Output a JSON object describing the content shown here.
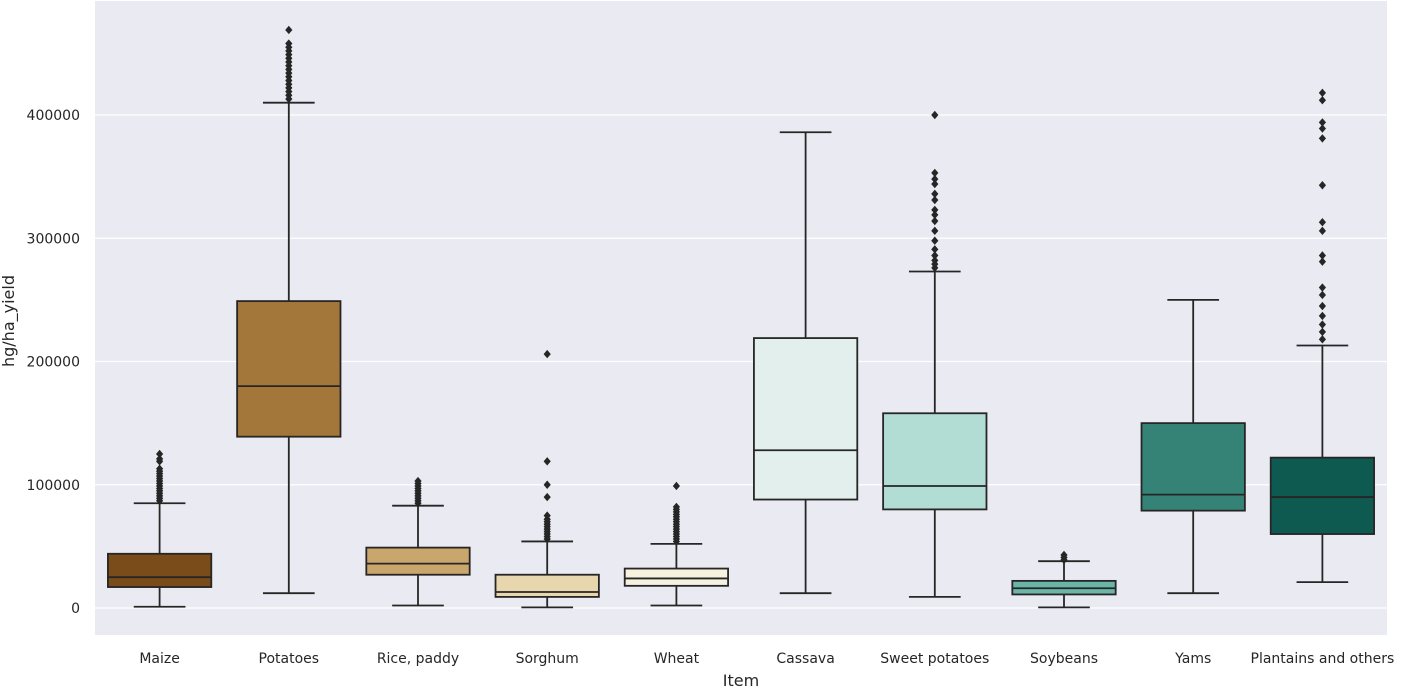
{
  "chart_data": {
    "type": "box",
    "title": "",
    "xlabel": "Item",
    "ylabel": "hg/ha_yield",
    "ylim": [
      -22000,
      490000
    ],
    "yticks": [
      0,
      100000,
      200000,
      300000,
      400000
    ],
    "ytick_labels": [
      "0",
      "100000",
      "200000",
      "300000",
      "400000"
    ],
    "grid": true,
    "categories": [
      "Maize",
      "Potatoes",
      "Rice, paddy",
      "Sorghum",
      "Wheat",
      "Cassava",
      "Sweet potatoes",
      "Soybeans",
      "Yams",
      "Plantains and others"
    ],
    "boxes": [
      {
        "category": "Maize",
        "color": "#7a4c1a",
        "whisker_low": 1000,
        "q1": 17000,
        "median": 25000,
        "q3": 44000,
        "whisker_high": 85000,
        "outliers": [
          87000,
          89000,
          91000,
          93000,
          95000,
          97000,
          99000,
          101000,
          103000,
          105000,
          107000,
          109000,
          111000,
          113000,
          119000,
          121000,
          125000
        ]
      },
      {
        "category": "Potatoes",
        "color": "#a3763a",
        "whisker_low": 12000,
        "q1": 139000,
        "median": 180000,
        "q3": 249000,
        "whisker_high": 410000,
        "outliers": [
          413000,
          416000,
          419000,
          422000,
          425000,
          428000,
          431000,
          434000,
          437000,
          440000,
          443000,
          446000,
          449000,
          452000,
          455000,
          458000,
          469000
        ]
      },
      {
        "category": "Rice, paddy",
        "color": "#c9a66b",
        "whisker_low": 2000,
        "q1": 27000,
        "median": 36000,
        "q3": 49000,
        "whisker_high": 83000,
        "outliers": [
          85000,
          87000,
          89000,
          91000,
          93000,
          95000,
          97000,
          99000,
          101000,
          103000
        ]
      },
      {
        "category": "Sorghum",
        "color": "#e8d6ae",
        "whisker_low": 500,
        "q1": 9000,
        "median": 13000,
        "q3": 27000,
        "whisker_high": 54000,
        "outliers": [
          56000,
          58000,
          60000,
          62000,
          64000,
          66000,
          68000,
          70000,
          72000,
          75000,
          90000,
          100000,
          119000,
          206000
        ]
      },
      {
        "category": "Wheat",
        "color": "#f7f1e0",
        "whisker_low": 2000,
        "q1": 18000,
        "median": 24000,
        "q3": 32000,
        "whisker_high": 52000,
        "outliers": [
          54000,
          56000,
          58000,
          60000,
          62000,
          64000,
          66000,
          68000,
          70000,
          72000,
          74000,
          76000,
          78000,
          80000,
          82000,
          99000
        ]
      },
      {
        "category": "Cassava",
        "color": "#e3efec",
        "whisker_low": 12000,
        "q1": 88000,
        "median": 128000,
        "q3": 219000,
        "whisker_high": 386000,
        "outliers": []
      },
      {
        "category": "Sweet potatoes",
        "color": "#b2ddd4",
        "whisker_low": 9000,
        "q1": 80000,
        "median": 99000,
        "q3": 158000,
        "whisker_high": 273000,
        "outliers": [
          276000,
          279000,
          282000,
          286000,
          291000,
          298000,
          306000,
          314000,
          319000,
          323000,
          331000,
          336000,
          344000,
          348000,
          353000,
          400000
        ]
      },
      {
        "category": "Soybeans",
        "color": "#6ab5a6",
        "whisker_low": 500,
        "q1": 11000,
        "median": 16000,
        "q3": 22000,
        "whisker_high": 38000,
        "outliers": [
          39000,
          41000,
          43000
        ]
      },
      {
        "category": "Yams",
        "color": "#358377",
        "whisker_low": 12000,
        "q1": 79000,
        "median": 92000,
        "q3": 150000,
        "whisker_high": 250000,
        "outliers": []
      },
      {
        "category": "Plantains and others",
        "color": "#0e5a51",
        "whisker_low": 21000,
        "q1": 60000,
        "median": 90000,
        "q3": 122000,
        "whisker_high": 213000,
        "outliers": [
          218000,
          224000,
          230000,
          237000,
          245000,
          254000,
          260000,
          281000,
          286000,
          306000,
          313000,
          343000,
          381000,
          389000,
          394000,
          412000,
          418000
        ]
      }
    ]
  }
}
